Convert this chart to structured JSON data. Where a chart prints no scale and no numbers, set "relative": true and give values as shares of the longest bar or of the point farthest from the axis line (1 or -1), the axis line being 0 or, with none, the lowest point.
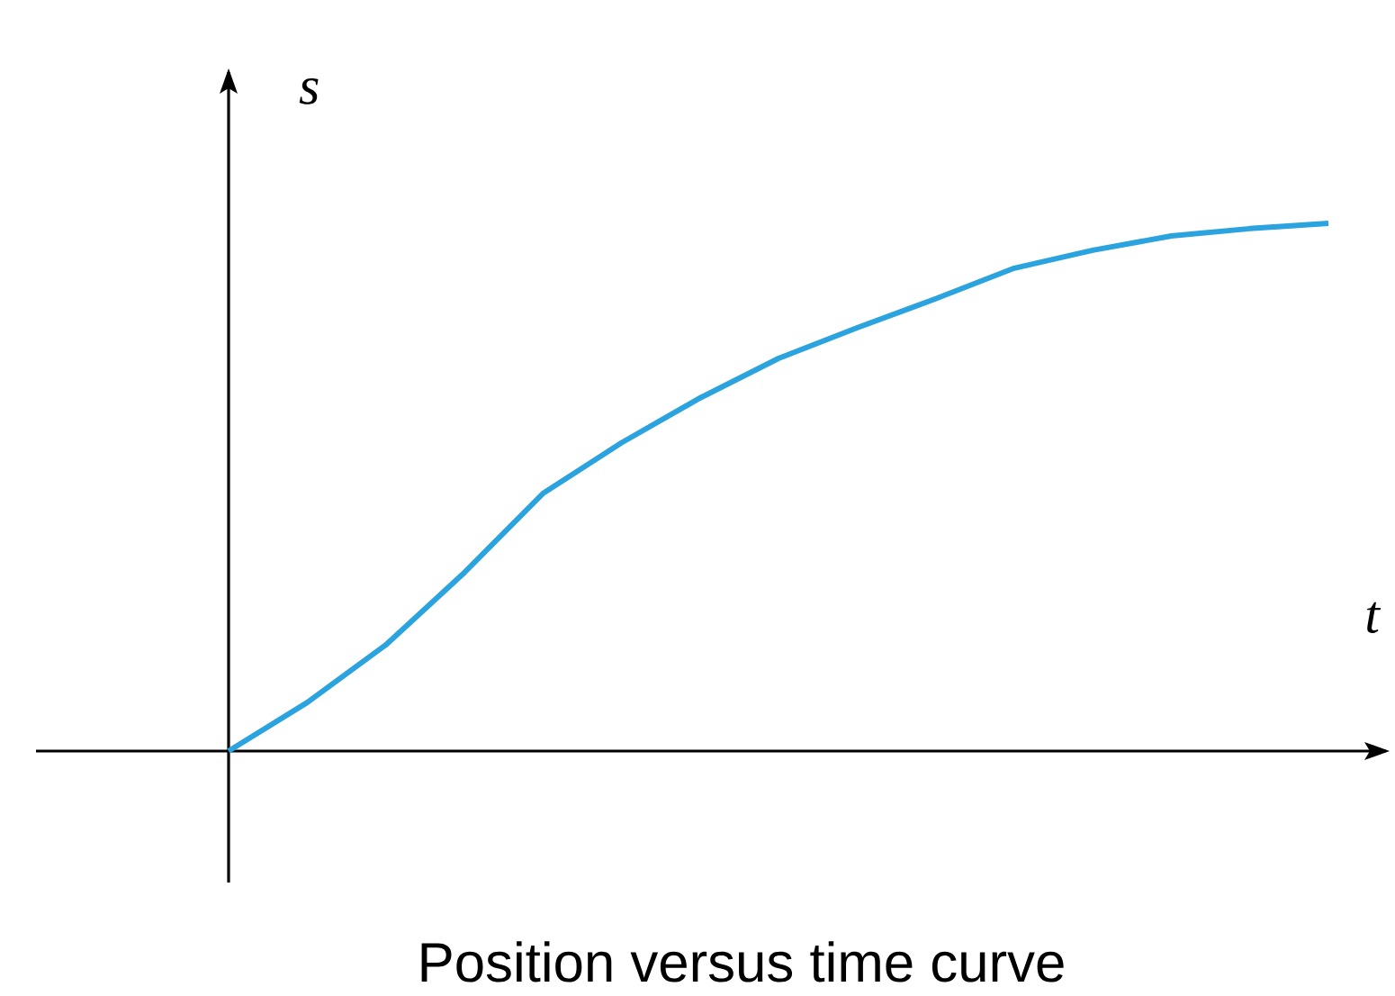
{
  "chart_data": {
    "type": "line",
    "title": "Position versus time curve",
    "xlabel": "t",
    "ylabel": "s",
    "relative": true,
    "color": "#2aa3df",
    "categories": [
      null,
      null,
      null,
      null,
      null,
      null,
      null,
      null,
      null,
      null,
      null,
      null,
      null,
      null,
      null
    ],
    "values": [
      0,
      0.092,
      0.201,
      0.338,
      0.488,
      0.584,
      0.669,
      0.744,
      0.802,
      0.857,
      0.915,
      0.949,
      0.976,
      0.99,
      1
    ]
  }
}
